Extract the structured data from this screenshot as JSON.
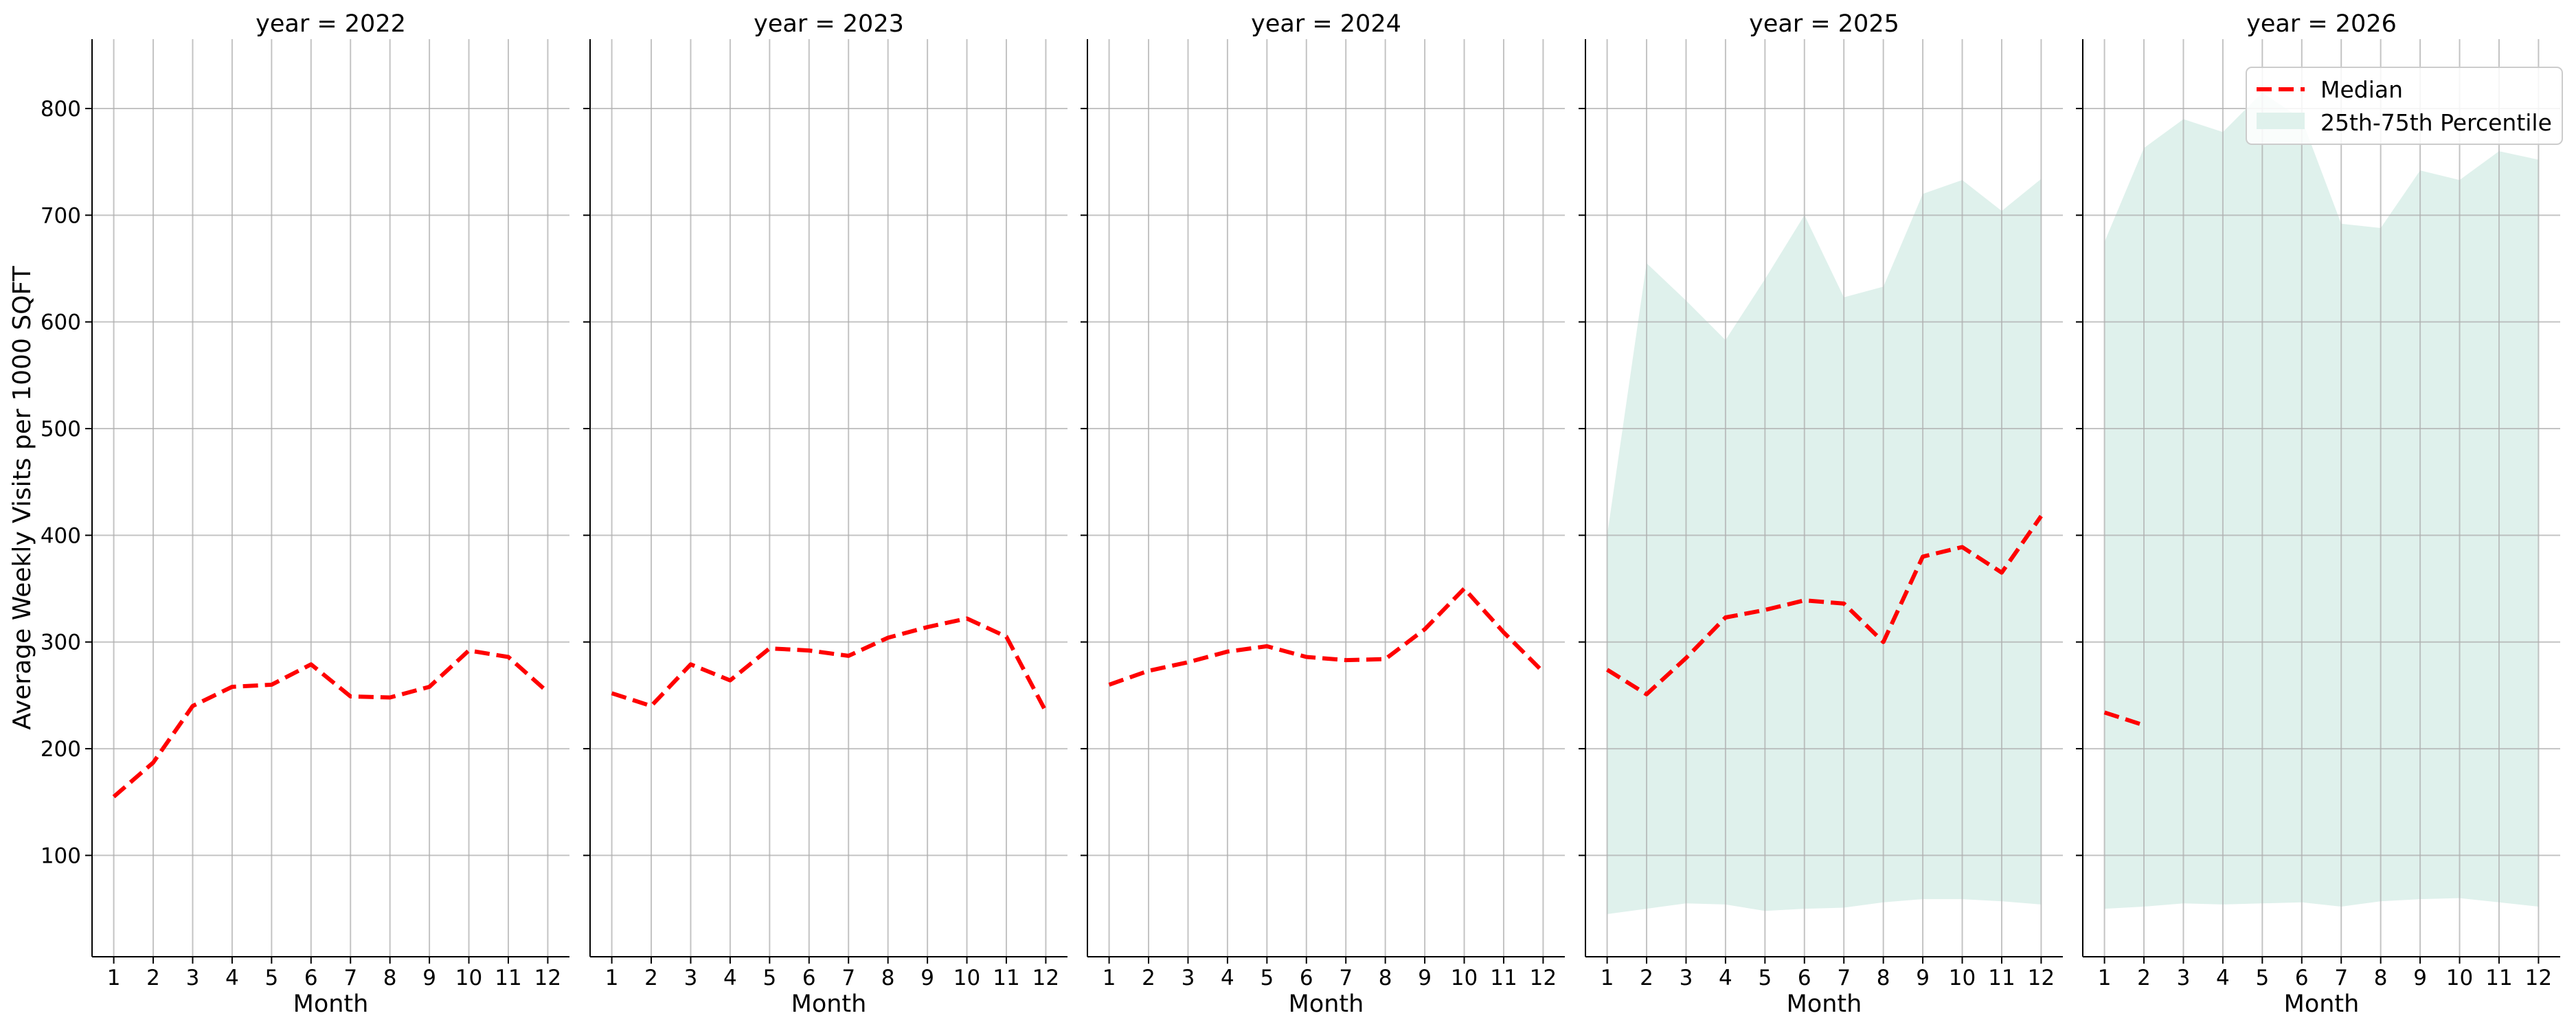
{
  "chart_data": {
    "type": "line",
    "ylabel": "Average Weekly Visits per 1000 SQFT",
    "xlabel": "Month",
    "x_ticks": [
      1,
      2,
      3,
      4,
      5,
      6,
      7,
      8,
      9,
      10,
      11,
      12
    ],
    "y_ticks": [
      100,
      200,
      300,
      400,
      500,
      600,
      700,
      800
    ],
    "ylim": [
      5,
      865
    ],
    "xlim": [
      0.45,
      12.55
    ],
    "grid": true,
    "legend": {
      "placement": "top-right",
      "entries": [
        {
          "label": "Median",
          "style": "dashed-line",
          "color": "#ff0000"
        },
        {
          "label": "25th-75th Percentile",
          "style": "fill",
          "color": "#dff1ec"
        }
      ]
    },
    "colors": {
      "median": "#ff0000",
      "band": "#dff1ec",
      "grid": "#b0b0b0"
    },
    "panels": [
      {
        "title": "year = 2022",
        "median": {
          "x": [
            1,
            2,
            3,
            4,
            5,
            6,
            7,
            8,
            9,
            10,
            11,
            12
          ],
          "y": [
            155,
            187,
            240,
            258,
            260,
            279,
            249,
            248,
            258,
            292,
            286,
            253
          ]
        },
        "band": null
      },
      {
        "title": "year = 2023",
        "median": {
          "x": [
            1,
            2,
            3,
            4,
            5,
            6,
            7,
            8,
            9,
            10,
            11,
            12
          ],
          "y": [
            252,
            240,
            279,
            264,
            294,
            292,
            287,
            304,
            314,
            322,
            305,
            235
          ]
        },
        "band": null
      },
      {
        "title": "year = 2024",
        "median": {
          "x": [
            1,
            2,
            3,
            4,
            5,
            6,
            7,
            8,
            9,
            10,
            11,
            12
          ],
          "y": [
            260,
            273,
            281,
            291,
            296,
            286,
            283,
            284,
            312,
            350,
            309,
            272
          ]
        },
        "band": null
      },
      {
        "title": "year = 2025",
        "median": {
          "x": [
            1,
            2,
            3,
            4,
            5,
            6,
            7,
            8,
            9,
            10,
            11,
            12
          ],
          "y": [
            274,
            251,
            285,
            323,
            330,
            339,
            336,
            300,
            380,
            389,
            365,
            418
          ]
        },
        "band": {
          "x": [
            1,
            2,
            3,
            4,
            5,
            6,
            7,
            8,
            9,
            10,
            11,
            12
          ],
          "lower": [
            45,
            50,
            55,
            54,
            48,
            50,
            51,
            56,
            59,
            59,
            57,
            54
          ],
          "upper": [
            400,
            655,
            620,
            583,
            640,
            700,
            623,
            633,
            720,
            733,
            704,
            734
          ]
        }
      },
      {
        "title": "year = 2026",
        "median": {
          "x": [
            1,
            2
          ],
          "y": [
            234,
            222
          ]
        },
        "band": {
          "x": [
            1,
            2,
            3,
            4,
            5,
            6,
            7,
            8,
            9,
            10,
            11,
            12
          ],
          "lower": [
            50,
            52,
            55,
            54,
            55,
            56,
            52,
            57,
            59,
            60,
            56,
            52
          ],
          "upper": [
            675,
            763,
            790,
            778,
            815,
            790,
            692,
            688,
            742,
            733,
            760,
            752
          ]
        }
      }
    ]
  }
}
